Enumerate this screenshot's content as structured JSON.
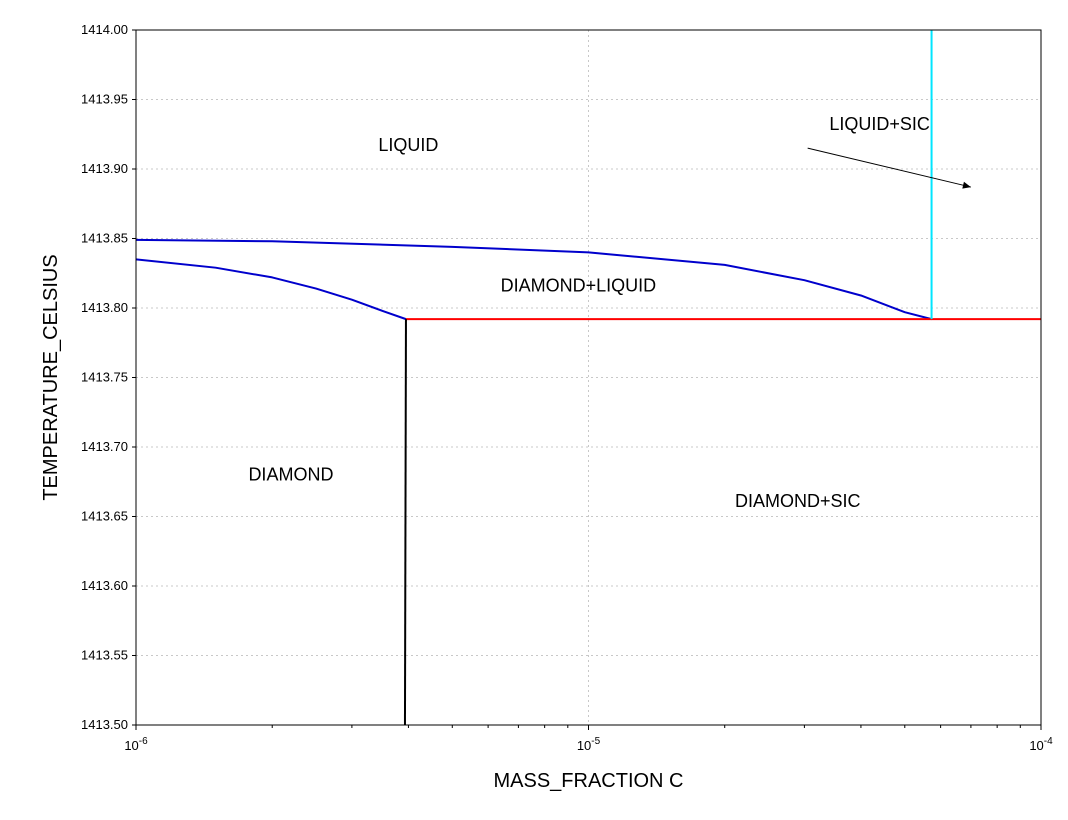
{
  "chart_data": {
    "type": "line",
    "title": "",
    "xlabel": "MASS_FRACTION C",
    "ylabel": "TEMPERATURE_CELSIUS",
    "x_scale": "log",
    "xlim": [
      1e-06,
      0.0001
    ],
    "ylim": [
      1413.5,
      1414.0
    ],
    "grid": true,
    "x_ticks": [
      {
        "value": 1e-06,
        "base": "10",
        "exp": "-6"
      },
      {
        "value": 1e-05,
        "base": "10",
        "exp": "-5"
      },
      {
        "value": 0.0001,
        "base": "10",
        "exp": "-4"
      }
    ],
    "y_ticks": [
      "1413.50",
      "1413.55",
      "1413.60",
      "1413.65",
      "1413.70",
      "1413.75",
      "1413.80",
      "1413.85",
      "1413.90",
      "1413.95",
      "1414.00"
    ],
    "series": [
      {
        "color": "#0000cc",
        "points": [
          [
            1e-06,
            1413.849
          ],
          [
            2e-06,
            1413.848
          ],
          [
            5e-06,
            1413.844
          ],
          [
            1e-05,
            1413.84
          ],
          [
            2e-05,
            1413.831
          ],
          [
            3e-05,
            1413.82
          ],
          [
            4e-05,
            1413.809
          ],
          [
            5e-05,
            1413.797
          ],
          [
            5.73e-05,
            1413.792
          ]
        ]
      },
      {
        "color": "#0000cc",
        "points": [
          [
            1e-06,
            1413.835
          ],
          [
            1.5e-06,
            1413.829
          ],
          [
            2e-06,
            1413.822
          ],
          [
            2.5e-06,
            1413.814
          ],
          [
            3e-06,
            1413.806
          ],
          [
            3.5e-06,
            1413.798
          ],
          [
            3.95e-06,
            1413.792
          ]
        ]
      },
      {
        "color": "#ff0000",
        "points": [
          [
            3.95e-06,
            1413.792
          ],
          [
            0.0001,
            1413.792
          ]
        ]
      },
      {
        "color": "#000000",
        "points": [
          [
            3.95e-06,
            1413.792
          ],
          [
            3.93e-06,
            1413.5
          ]
        ]
      },
      {
        "color": "#00e5ff",
        "points": [
          [
            5.73e-05,
            1413.792
          ],
          [
            5.73e-05,
            1414.0
          ]
        ]
      }
    ],
    "annotations": [
      {
        "text": "LIQUID",
        "x": 4e-06,
        "y": 1413.913
      },
      {
        "text": "LIQUID+SIC",
        "x": 4.4e-05,
        "y": 1413.928
      },
      {
        "text": "DIAMOND+LIQUID",
        "x": 9.5e-06,
        "y": 1413.812
      },
      {
        "text": "DIAMOND",
        "x": 2.2e-06,
        "y": 1413.676
      },
      {
        "text": "DIAMOND+SIC",
        "x": 2.9e-05,
        "y": 1413.657
      }
    ],
    "arrows": [
      {
        "from": [
          3.05e-05,
          1413.915
        ],
        "to": [
          7e-05,
          1413.887
        ]
      }
    ]
  }
}
